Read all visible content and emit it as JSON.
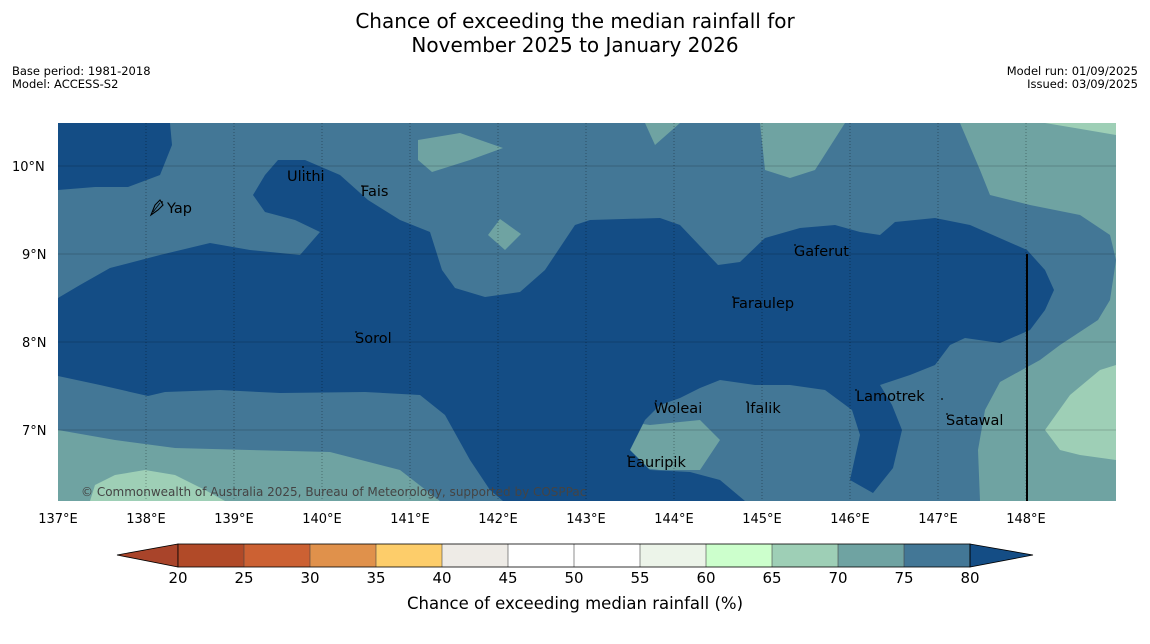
{
  "title_line1": "Chance of exceeding the median rainfall for",
  "title_line2": "November 2025 to January 2026",
  "meta_left": [
    "Base period: 1981-2018",
    "Model: ACCESS-S2"
  ],
  "meta_right": [
    "Model run: 01/09/2025",
    "Issued: 03/09/2025"
  ],
  "copyright": "© Commonwealth of Australia 2025, Bureau of Meteorology, supported by COSPPac",
  "axes": {
    "x_ticks": [
      "137°E",
      "138°E",
      "139°E",
      "140°E",
      "141°E",
      "142°E",
      "143°E",
      "144°E",
      "145°E",
      "146°E",
      "147°E",
      "148°E"
    ],
    "y_ticks": [
      "10°N",
      "9°N",
      "8°N",
      "7°N"
    ],
    "lon_range": [
      137,
      149
    ],
    "lat_range": [
      6.2,
      10.5
    ]
  },
  "places": [
    {
      "name": "Yap"
    },
    {
      "name": "Ulithi"
    },
    {
      "name": "Fais"
    },
    {
      "name": "Gaferut"
    },
    {
      "name": "Faraulep"
    },
    {
      "name": "Sorol"
    },
    {
      "name": "Woleai"
    },
    {
      "name": "Ifalik"
    },
    {
      "name": "Lamotrek"
    },
    {
      "name": "Satawal"
    },
    {
      "name": "Eauripik"
    }
  ],
  "colorbar": {
    "label": "Chance of exceeding median rainfall (%)",
    "ticks": [
      "20",
      "25",
      "30",
      "35",
      "40",
      "45",
      "50",
      "55",
      "60",
      "65",
      "70",
      "75",
      "80"
    ],
    "colors": [
      "#a9442a",
      "#b14a28",
      "#cc6133",
      "#e0914b",
      "#fdcd6a",
      "#eeebe6",
      "#ffffff",
      "#ffffff",
      "#ecf4e9",
      "#ccffcc",
      "#9ecfb6",
      "#6fa3a2",
      "#437796",
      "#144d85"
    ]
  },
  "legend_colors": {
    "c60_65": "#ccffcc",
    "c65_70": "#9ecfb6",
    "c70_75": "#6fa3a2",
    "c75_80": "#437796",
    "c80_plus": "#144d85"
  }
}
